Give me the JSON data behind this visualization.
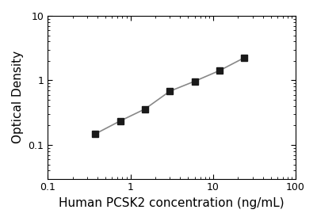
{
  "x_values": [
    0.375,
    0.75,
    1.5,
    3.0,
    6.0,
    12.0,
    24.0
  ],
  "y_values": [
    0.148,
    0.235,
    0.36,
    0.68,
    0.97,
    1.42,
    2.25
  ],
  "xlabel": "Human PCSK2 concentration (ng/mL)",
  "ylabel": "Optical Density",
  "xlim": [
    0.1,
    100
  ],
  "ylim": [
    0.03,
    10
  ],
  "marker": "s",
  "marker_color": "#1a1a1a",
  "marker_size": 6,
  "line_color": "#888888",
  "line_width": 1.2,
  "background_color": "#ffffff",
  "tick_color": "#000000",
  "xlabel_fontsize": 11,
  "ylabel_fontsize": 11,
  "x_ticks": [
    0.1,
    1,
    10,
    100
  ],
  "x_tick_labels": [
    "0.1",
    "1",
    "10",
    "100"
  ],
  "y_ticks": [
    0.1,
    1,
    10
  ],
  "y_tick_labels": [
    "0.1",
    "1",
    "10"
  ]
}
